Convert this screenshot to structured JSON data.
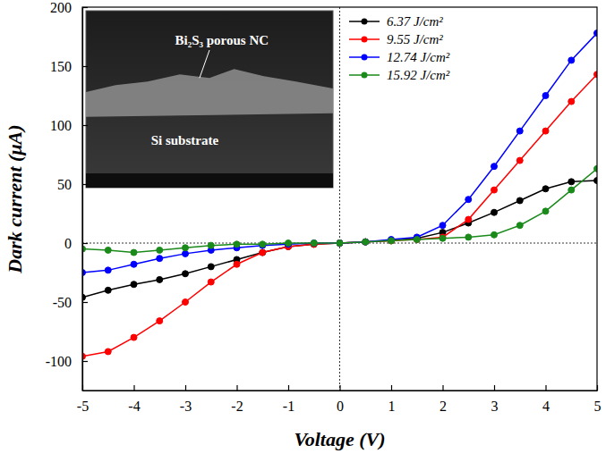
{
  "chart_data": {
    "type": "line",
    "x_label": "Voltage (V)",
    "y_label": "Dark current (μA)",
    "x": [
      -5,
      -4.5,
      -4,
      -3.5,
      -3,
      -2.5,
      -2,
      -1.5,
      -1,
      -0.5,
      0,
      0.5,
      1,
      1.5,
      2,
      2.5,
      3,
      3.5,
      4,
      4.5,
      5
    ],
    "series": [
      {
        "name": "6.37 J/cm²",
        "color": "#000000",
        "marker": "circle",
        "values": [
          -46,
          -40,
          -35,
          -31,
          -26,
          -20,
          -14,
          -8,
          -3,
          -1,
          0,
          1,
          2,
          4,
          9,
          17,
          26,
          36,
          46,
          52,
          53
        ]
      },
      {
        "name": "9.55 J/cm²",
        "color": "#ff0000",
        "marker": "circle",
        "values": [
          -96,
          -92,
          -80,
          -66,
          -50,
          -33,
          -18,
          -8,
          -3,
          -1,
          0,
          1,
          2,
          3,
          5,
          20,
          45,
          70,
          95,
          120,
          143
        ]
      },
      {
        "name": "12.74 J/cm²",
        "color": "#0000ff",
        "marker": "circle",
        "values": [
          -25,
          -23,
          -18,
          -13,
          -9,
          -6,
          -4,
          -2,
          -1,
          0,
          0,
          1,
          3,
          5,
          15,
          37,
          65,
          95,
          125,
          155,
          178
        ]
      },
      {
        "name": "15.92 J/cm²",
        "color": "#1a8a1a",
        "marker": "circle",
        "values": [
          -5,
          -6,
          -8,
          -6,
          -4,
          -2,
          -1,
          -1,
          0,
          0,
          0,
          1,
          2,
          3,
          4,
          5,
          7,
          15,
          27,
          45,
          63
        ]
      }
    ],
    "xlim": [
      -5,
      5
    ],
    "ylim": [
      -125,
      200
    ],
    "xticks": [
      -5,
      -4,
      -3,
      -2,
      -1,
      0,
      1,
      2,
      3,
      4,
      5
    ],
    "yticks": [
      -100,
      -50,
      0,
      50,
      100,
      150,
      200
    ],
    "legend": "top",
    "annotations": [
      "Bi₂S₃ porous NC",
      "Si substrate"
    ]
  }
}
